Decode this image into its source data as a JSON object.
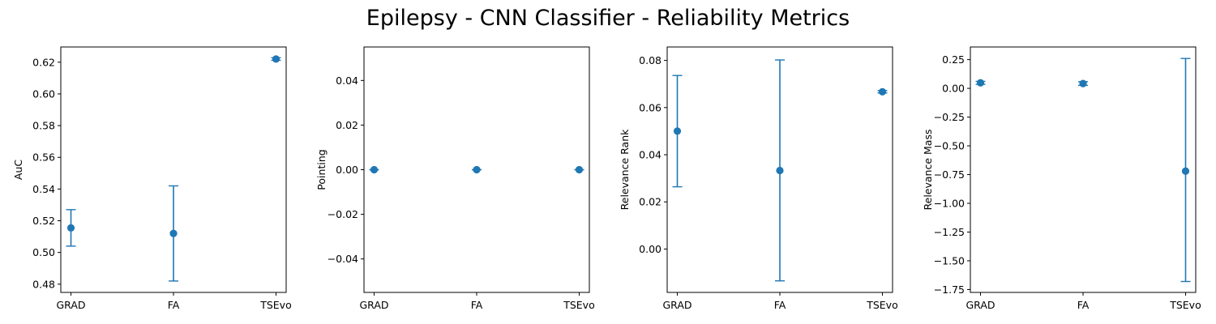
{
  "title": "Epilepsy - CNN Classifier - Reliability Metrics",
  "series_color": "#1f77b4",
  "chart_data": [
    {
      "type": "scatter",
      "categories": [
        "GRAD",
        "FA",
        "TSEvo"
      ],
      "ylabel": "AuC",
      "ylim": [
        0.4748,
        0.6296
      ],
      "yticks": [
        0.48,
        0.5,
        0.52,
        0.54,
        0.56,
        0.58,
        0.6,
        0.62
      ],
      "ytick_labels": [
        "0.48",
        "0.50",
        "0.52",
        "0.54",
        "0.56",
        "0.58",
        "0.60",
        "0.62"
      ],
      "values": [
        0.5155,
        0.512,
        0.622
      ],
      "error": [
        [
          0.504,
          0.527
        ],
        [
          0.482,
          0.542
        ],
        [
          0.6212,
          0.6228
        ]
      ]
    },
    {
      "type": "scatter",
      "categories": [
        "GRAD",
        "FA",
        "TSEvo"
      ],
      "ylabel": "Pointing",
      "ylim": [
        -0.055,
        0.055
      ],
      "yticks": [
        -0.04,
        -0.02,
        0.0,
        0.02,
        0.04
      ],
      "ytick_labels": [
        "−0.04",
        "−0.02",
        "0.00",
        "0.02",
        "0.04"
      ],
      "values": [
        0.0,
        0.0,
        0.0
      ],
      "error": [
        [
          0.0,
          0.0
        ],
        [
          0.0,
          0.0
        ],
        [
          0.0,
          0.0
        ]
      ]
    },
    {
      "type": "scatter",
      "categories": [
        "GRAD",
        "FA",
        "TSEvo"
      ],
      "ylabel": "Relevance Rank",
      "ylim": [
        -0.0184,
        0.0857
      ],
      "yticks": [
        0.0,
        0.02,
        0.04,
        0.06,
        0.08
      ],
      "ytick_labels": [
        "0.00",
        "0.02",
        "0.04",
        "0.06",
        "0.08"
      ],
      "values": [
        0.05,
        0.0333,
        0.0667
      ],
      "error": [
        [
          0.0264,
          0.0736
        ],
        [
          -0.0135,
          0.0802
        ],
        [
          0.0662,
          0.0672
        ]
      ]
    },
    {
      "type": "scatter",
      "categories": [
        "GRAD",
        "FA",
        "TSEvo"
      ],
      "ylabel": "Relevance Mass",
      "ylim": [
        -1.775,
        0.36
      ],
      "yticks": [
        -1.75,
        -1.5,
        -1.25,
        -1.0,
        -0.75,
        -0.5,
        -0.25,
        0.0,
        0.25
      ],
      "ytick_labels": [
        "−1.75",
        "−1.50",
        "−1.25",
        "−1.00",
        "−0.75",
        "−0.50",
        "−0.25",
        "0.00",
        "0.25"
      ],
      "values": [
        0.048,
        0.042,
        -0.72
      ],
      "error": [
        [
          0.035,
          0.061
        ],
        [
          0.026,
          0.058
        ],
        [
          -1.68,
          0.26
        ]
      ]
    }
  ]
}
